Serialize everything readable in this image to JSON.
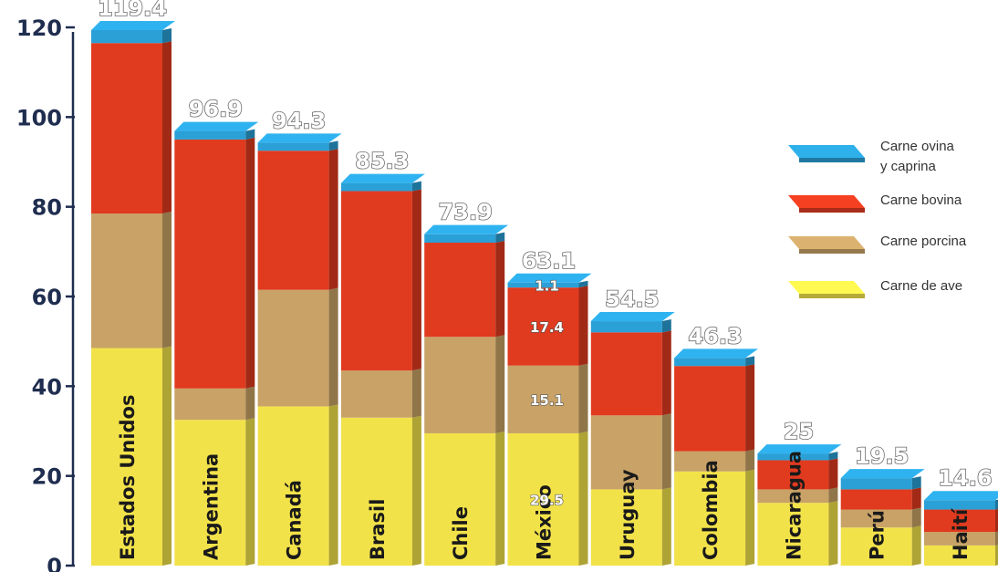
{
  "chart_data": {
    "type": "bar",
    "stacked": true,
    "categories": [
      "Estados Unidos",
      "Argentina",
      "Canadá",
      "Brasil",
      "Chile",
      "México",
      "Uruguay",
      "Colombia",
      "Nicaragua",
      "Perú",
      "Haití"
    ],
    "totals": [
      "119.4",
      "96.9",
      "94.3",
      "85.3",
      "73.9",
      "63.1",
      "54.5",
      "46.3",
      "25",
      "19.5",
      "14.6"
    ],
    "series": [
      {
        "name": "Carne de ave",
        "color": "#f2e24a",
        "values": [
          48.5,
          32.5,
          35.5,
          33.0,
          29.5,
          29.5,
          17.0,
          21.0,
          14.0,
          8.5,
          4.5
        ]
      },
      {
        "name": "Carne porcina",
        "color": "#c8a266",
        "values": [
          30.0,
          7.0,
          26.0,
          10.5,
          21.5,
          15.1,
          16.5,
          4.5,
          3.0,
          4.0,
          3.0
        ]
      },
      {
        "name": "Carne bovina",
        "color": "#e03a1f",
        "values": [
          38.0,
          55.5,
          31.0,
          40.0,
          21.0,
          17.4,
          18.5,
          19.0,
          6.5,
          4.5,
          5.0
        ]
      },
      {
        "name": "Carne ovina y caprina",
        "color": "#2aa0d6",
        "values": [
          2.9,
          1.9,
          1.8,
          1.8,
          1.9,
          1.1,
          2.5,
          1.8,
          1.5,
          2.5,
          2.1
        ]
      }
    ],
    "segment_labels": [
      {
        "category": "México",
        "series": "Carne de ave",
        "text": "29.5"
      },
      {
        "category": "México",
        "series": "Carne porcina",
        "text": "15.1"
      },
      {
        "category": "México",
        "series": "Carne bovina",
        "text": "17.4"
      },
      {
        "category": "México",
        "series": "Carne ovina y caprina",
        "text": "1.1"
      }
    ],
    "y_ticks": [
      "0",
      "20",
      "40",
      "60",
      "80",
      "100",
      "120"
    ],
    "ylim": [
      0,
      120
    ],
    "legend": {
      "position": "right",
      "entries": [
        {
          "lines": [
            "Carne ovina",
            "y caprina"
          ],
          "color": "#2aa0d6"
        },
        {
          "lines": [
            "Carne bovina"
          ],
          "color": "#e03a1f"
        },
        {
          "lines": [
            "Carne porcina"
          ],
          "color": "#c8a266"
        },
        {
          "lines": [
            "Carne de ave"
          ],
          "color": "#f2e24a"
        }
      ]
    }
  }
}
